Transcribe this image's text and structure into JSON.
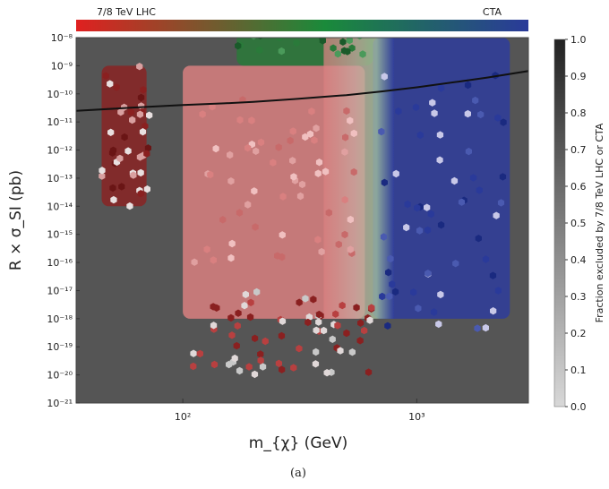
{
  "chart_data": {
    "type": "heatmap",
    "title": "",
    "xlabel": "m_{χ} (GeV)",
    "ylabel": "R × σ_SI (pb)",
    "x_scale": "log",
    "y_scale": "log",
    "xlim": [
      35,
      3000
    ],
    "ylim": [
      1e-21,
      1e-08
    ],
    "x_ticks": [
      {
        "value": 100,
        "label": "10²"
      },
      {
        "value": 1000,
        "label": "10³"
      }
    ],
    "y_ticks": [
      {
        "value": 1e-08,
        "label": "10⁻⁸"
      },
      {
        "value": 1e-09,
        "label": "10⁻⁹"
      },
      {
        "value": 1e-10,
        "label": "10⁻¹⁰"
      },
      {
        "value": 1e-11,
        "label": "10⁻¹¹"
      },
      {
        "value": 1e-12,
        "label": "10⁻¹²"
      },
      {
        "value": 1e-13,
        "label": "10⁻¹³"
      },
      {
        "value": 1e-14,
        "label": "10⁻¹⁴"
      },
      {
        "value": 1e-15,
        "label": "10⁻¹⁵"
      },
      {
        "value": 1e-16,
        "label": "10⁻¹⁶"
      },
      {
        "value": 1e-17,
        "label": "10⁻¹⁷"
      },
      {
        "value": 1e-18,
        "label": "10⁻¹⁸"
      },
      {
        "value": 1e-19,
        "label": "10⁻¹⁹"
      },
      {
        "value": 1e-20,
        "label": "10⁻²⁰"
      },
      {
        "value": 1e-21,
        "label": "10⁻²¹"
      }
    ],
    "background_color": "#555555",
    "top_colorbar": {
      "left_label": "7/8 TeV LHC",
      "right_label": "CTA",
      "colors": [
        "#e02020",
        "#1a8a3a",
        "#2a3a9a"
      ]
    },
    "side_colorbar": {
      "label": "Fraction excluded by 7/8 TeV LHC or CTA",
      "min": 0.0,
      "max": 1.0,
      "ticks": [
        0.0,
        0.1,
        0.2,
        0.3,
        0.4,
        0.5,
        0.6,
        0.7,
        0.8,
        0.9,
        1.0
      ],
      "tick_labels": [
        "0.0",
        "0.1",
        "0.2",
        "0.3",
        "0.4",
        "0.5",
        "0.6",
        "0.7",
        "0.8",
        "0.9",
        "1.0"
      ],
      "color_min": "#d8d8d8",
      "color_max": "#222222"
    },
    "series": [
      {
        "type": "line",
        "color": "#111111",
        "x": [
          35,
          60,
          100,
          150,
          200,
          300,
          500,
          700,
          1000,
          1500,
          2000,
          3000
        ],
        "y": [
          2.5e-11,
          3.2e-11,
          4e-11,
          4.6e-11,
          5.2e-11,
          6.5e-11,
          9e-11,
          1.2e-10,
          1.7e-10,
          2.7e-10,
          3.8e-10,
          6.5e-10
        ]
      }
    ],
    "regions": [
      {
        "exclusion": "7/8 TeV LHC",
        "color": "#d98080",
        "x_range": [
          100,
          600
        ],
        "y_range": [
          1e-18,
          1e-09
        ]
      },
      {
        "exclusion": "7/8 TeV LHC",
        "color": "#2a7a3a",
        "x_range": [
          170,
          650
        ],
        "y_range": [
          1e-09,
          3e-08
        ]
      },
      {
        "exclusion": "CTA",
        "color": "#2f3d9c",
        "x_range": [
          650,
          2500
        ],
        "y_range": [
          1e-18,
          1e-08
        ]
      },
      {
        "exclusion": "7/8 TeV LHC",
        "color": "#8a2525",
        "x_range": [
          45,
          70
        ],
        "y_range": [
          1e-14,
          1e-09
        ]
      }
    ],
    "caption": "(a)"
  }
}
